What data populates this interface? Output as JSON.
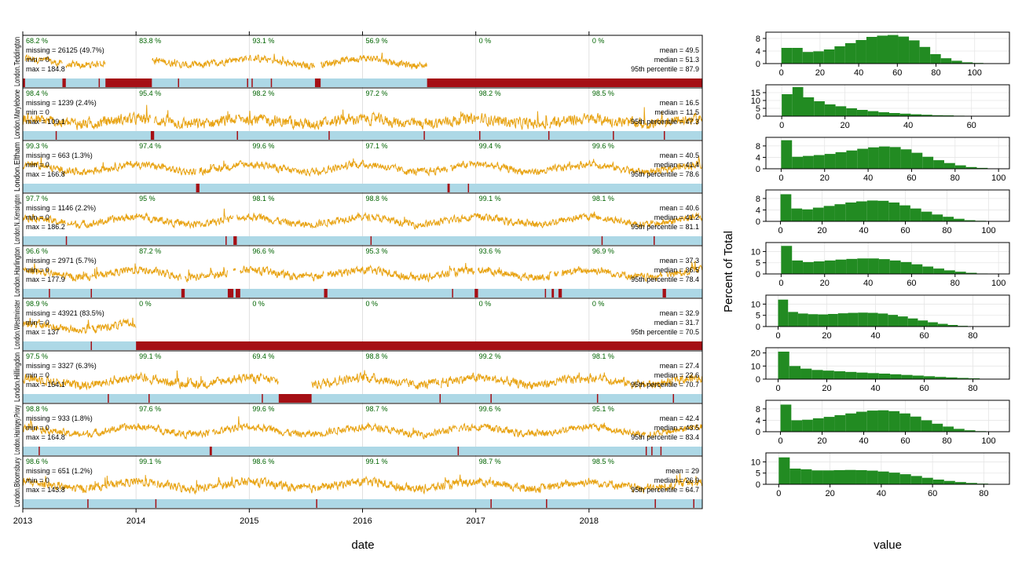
{
  "chart_data": [
    {
      "type": "line",
      "title": "",
      "xlabel": "date",
      "ylabel": "",
      "xlim": [
        2013,
        2019
      ],
      "x_ticks": [
        "2013",
        "2014",
        "2015",
        "2016",
        "2017",
        "2018"
      ],
      "colors": {
        "line": "#e8a313",
        "present": "#add8e6",
        "missing": "#a50f15",
        "pct_text": "#006400",
        "grid": "#d9d9d9"
      },
      "panels": [
        {
          "site": "London.Teddington",
          "missing": "missing = 26125 (49.7%)",
          "min": "min = 0",
          "max": "max = 184.8",
          "mean": "mean = 49.5",
          "median": "median = 51.3",
          "p95": "95th percentile = 87.9",
          "year_pct": [
            "68.2 %",
            "83.8 %",
            "93.1 %",
            "56.9 %",
            "0 %",
            "0 %"
          ],
          "missing_spans": [
            [
              2013.0,
              2013.02
            ],
            [
              2013.35,
              2013.38
            ],
            [
              2013.67,
              2013.68
            ],
            [
              2013.73,
              2014.14
            ],
            [
              2014.37,
              2014.38
            ],
            [
              2014.98,
              2014.99
            ],
            [
              2015.02,
              2015.03
            ],
            [
              2015.19,
              2015.2
            ],
            [
              2015.58,
              2015.63
            ],
            [
              2016.57,
              2019.0
            ]
          ],
          "level": 48,
          "amp": 22,
          "noise": 16
        },
        {
          "site": "London.Marylebone",
          "missing": "missing = 1239 (2.4%)",
          "min": "min = 0",
          "max": "max = 109.1",
          "mean": "mean = 16.5",
          "median": "median = 11.5",
          "p95": "95th percentile = 47.3",
          "year_pct": [
            "98.4 %",
            "95.4 %",
            "98.2 %",
            "97.2 %",
            "98.2 %",
            "98.5 %"
          ],
          "missing_spans": [
            [
              2013.29,
              2013.3
            ],
            [
              2014.13,
              2014.16
            ],
            [
              2014.89,
              2014.9
            ],
            [
              2015.7,
              2015.71
            ],
            [
              2016.54,
              2016.55
            ],
            [
              2017.03,
              2017.04
            ],
            [
              2017.64,
              2017.65
            ],
            [
              2018.21,
              2018.22
            ],
            [
              2018.66,
              2018.67
            ]
          ],
          "level": 15,
          "amp": 8,
          "noise": 14
        },
        {
          "site": "London.Eltham",
          "missing": "missing = 663 (1.3%)",
          "min": "min = 0",
          "max": "max = 166.8",
          "mean": "mean = 40.5",
          "median": "median = 41.4",
          "p95": "95th percentile = 78.6",
          "year_pct": [
            "99.3 %",
            "97.4 %",
            "99.6 %",
            "97.1 %",
            "99.4 %",
            "99.6 %"
          ],
          "missing_spans": [
            [
              2014.53,
              2014.56
            ],
            [
              2016.75,
              2016.77
            ],
            [
              2016.93,
              2016.94
            ]
          ],
          "level": 40,
          "amp": 20,
          "noise": 15
        },
        {
          "site": "London.N..Kensington",
          "missing": "missing = 1146 (2.2%)",
          "min": "min = 0",
          "max": "max = 186.2",
          "mean": "mean = 40.6",
          "median": "median = 41.2",
          "p95": "95th percentile = 81.1",
          "year_pct": [
            "97.7 %",
            "95 %",
            "98.1 %",
            "98.8 %",
            "99.1 %",
            "98.1 %"
          ],
          "missing_spans": [
            [
              2013.38,
              2013.39
            ],
            [
              2014.79,
              2014.8
            ],
            [
              2014.86,
              2014.89
            ],
            [
              2016.07,
              2016.08
            ],
            [
              2018.11,
              2018.12
            ],
            [
              2018.57,
              2018.58
            ]
          ],
          "level": 40,
          "amp": 20,
          "noise": 15
        },
        {
          "site": "London.Harlington",
          "missing": "missing = 2971 (5.7%)",
          "min": "min = 0",
          "max": "max = 177.9",
          "mean": "mean = 37.3",
          "median": "median = 36.5",
          "p95": "95th percentile = 78.4",
          "year_pct": [
            "96.6 %",
            "87.2 %",
            "96.6 %",
            "95.3 %",
            "93.6 %",
            "96.9 %"
          ],
          "missing_spans": [
            [
              2013.23,
              2013.24
            ],
            [
              2013.6,
              2013.61
            ],
            [
              2014.4,
              2014.43
            ],
            [
              2014.81,
              2014.86
            ],
            [
              2014.88,
              2014.92
            ],
            [
              2015.66,
              2015.69
            ],
            [
              2016.79,
              2016.8
            ],
            [
              2016.99,
              2017.02
            ],
            [
              2017.61,
              2017.62
            ],
            [
              2017.67,
              2017.69
            ],
            [
              2017.73,
              2017.76
            ],
            [
              2018.65,
              2018.68
            ]
          ],
          "level": 37,
          "amp": 18,
          "noise": 15
        },
        {
          "site": "London.Westminster",
          "missing": "missing = 43921 (83.5%)",
          "min": "min = 0",
          "max": "max = 137",
          "mean": "mean = 32.9",
          "median": "median = 31.7",
          "p95": "95th percentile = 70.5",
          "year_pct": [
            "98.9 %",
            "0 %",
            "0 %",
            "0 %",
            "0 %",
            "0 %"
          ],
          "missing_spans": [
            [
              2013.6,
              2013.61
            ],
            [
              2014.0,
              2019.0
            ]
          ],
          "level": 32,
          "amp": 14,
          "noise": 14
        },
        {
          "site": "London.Hillingdon",
          "missing": "missing = 3327 (6.3%)",
          "min": "min = 0",
          "max": "max = 154.1",
          "mean": "mean = 27.4",
          "median": "median = 22.6",
          "p95": "95th percentile = 70.7",
          "year_pct": [
            "97.5 %",
            "99.1 %",
            "69.4 %",
            "98.8 %",
            "99.2 %",
            "98.1 %"
          ],
          "missing_spans": [
            [
              2013.75,
              2013.76
            ],
            [
              2014.11,
              2014.12
            ],
            [
              2015.11,
              2015.12
            ],
            [
              2015.26,
              2015.55
            ],
            [
              2016.68,
              2016.69
            ],
            [
              2017.13,
              2017.14
            ],
            [
              2018.07,
              2018.08
            ],
            [
              2018.74,
              2018.75
            ]
          ],
          "level": 27,
          "amp": 15,
          "noise": 15
        },
        {
          "site": "London.Haringey.Priory",
          "missing": "missing = 933 (1.8%)",
          "min": "min = 0",
          "max": "max = 164.8",
          "mean": "mean = 42.4",
          "median": "median = 43.5",
          "p95": "95th percentile = 83.4",
          "year_pct": [
            "98.8 %",
            "97.6 %",
            "99.6 %",
            "98.7 %",
            "99.6 %",
            "95.1 %"
          ],
          "missing_spans": [
            [
              2013.14,
              2013.15
            ],
            [
              2014.65,
              2014.67
            ],
            [
              2016.84,
              2016.85
            ],
            [
              2018.5,
              2018.51
            ],
            [
              2018.55,
              2018.56
            ],
            [
              2018.63,
              2018.64
            ]
          ],
          "level": 42,
          "amp": 20,
          "noise": 15
        },
        {
          "site": "London.Bloomsbury",
          "missing": "missing = 651 (1.2%)",
          "min": "min = 0",
          "max": "max = 143.8",
          "mean": "mean = 29",
          "median": "median = 26.9",
          "p95": "95th percentile = 64.7",
          "year_pct": [
            "98.6 %",
            "99.1 %",
            "98.6 %",
            "99.1 %",
            "98.7 %",
            "98.5 %"
          ],
          "missing_spans": [
            [
              2013.57,
              2013.58
            ],
            [
              2014.17,
              2014.18
            ],
            [
              2015.59,
              2015.6
            ],
            [
              2017.13,
              2017.14
            ],
            [
              2017.62,
              2017.63
            ],
            [
              2018.58,
              2018.59
            ],
            [
              2018.92,
              2018.93
            ]
          ],
          "level": 29,
          "amp": 14,
          "noise": 14
        }
      ]
    },
    {
      "type": "bar",
      "title": "",
      "xlabel": "value",
      "ylabel": "Percent of Total",
      "panels": [
        {
          "xlim": [
            -8,
            118
          ],
          "xticks": [
            0,
            20,
            40,
            60,
            80,
            100
          ],
          "ylim": [
            0,
            10
          ],
          "yticks": [
            0,
            4,
            8
          ],
          "bin": 5.5,
          "values": [
            5.0,
            5.0,
            3.7,
            3.9,
            4.5,
            5.5,
            6.5,
            7.5,
            8.5,
            8.9,
            9.1,
            8.6,
            7.4,
            5.3,
            3.0,
            1.7,
            0.9,
            0.4,
            0.2,
            0.1
          ]
        },
        {
          "xlim": [
            -5,
            72
          ],
          "xticks": [
            0,
            20,
            40,
            60
          ],
          "ylim": [
            0,
            20
          ],
          "yticks": [
            0,
            5,
            10,
            15
          ],
          "bin": 3.4,
          "values": [
            14.0,
            18.5,
            12.0,
            9.5,
            7.5,
            6.3,
            5.0,
            4.0,
            3.2,
            2.5,
            2.0,
            1.6,
            1.2,
            0.9,
            0.6,
            0.5,
            0.3,
            0.2,
            0.1,
            0.1
          ]
        },
        {
          "xlim": [
            -7,
            105
          ],
          "xticks": [
            0,
            20,
            40,
            60,
            80,
            100
          ],
          "ylim": [
            0,
            11
          ],
          "yticks": [
            0,
            4,
            8
          ],
          "bin": 5.0,
          "values": [
            10.0,
            4.2,
            4.5,
            4.8,
            5.2,
            5.8,
            6.4,
            7.0,
            7.5,
            7.8,
            7.6,
            6.8,
            5.6,
            4.2,
            3.0,
            2.0,
            1.2,
            0.6,
            0.3,
            0.1
          ]
        },
        {
          "xlim": [
            -7,
            110
          ],
          "xticks": [
            0,
            20,
            40,
            60,
            80,
            100
          ],
          "ylim": [
            0,
            11
          ],
          "yticks": [
            0,
            4,
            8
          ],
          "bin": 5.2,
          "values": [
            9.5,
            4.5,
            4.2,
            4.8,
            5.4,
            6.0,
            6.6,
            7.0,
            7.3,
            7.2,
            6.6,
            5.6,
            4.5,
            3.4,
            2.4,
            1.6,
            0.9,
            0.4,
            0.2,
            0.1
          ]
        },
        {
          "xlim": [
            -7,
            105
          ],
          "xticks": [
            0,
            20,
            40,
            60,
            80,
            100
          ],
          "ylim": [
            0,
            14
          ],
          "yticks": [
            0,
            5,
            10
          ],
          "bin": 5.0,
          "values": [
            12.5,
            6.0,
            5.3,
            5.6,
            6.0,
            6.4,
            6.7,
            6.9,
            6.9,
            6.6,
            6.0,
            5.3,
            4.3,
            3.3,
            2.4,
            1.6,
            1.0,
            0.5,
            0.2,
            0.1
          ]
        },
        {
          "xlim": [
            -5,
            95
          ],
          "xticks": [
            0,
            20,
            40,
            60,
            80
          ],
          "ylim": [
            0,
            14
          ],
          "yticks": [
            0,
            5,
            10
          ],
          "bin": 4.1,
          "values": [
            12.0,
            6.5,
            5.8,
            5.5,
            5.4,
            5.6,
            5.9,
            6.1,
            6.2,
            6.1,
            5.8,
            5.2,
            4.5,
            3.6,
            2.7,
            1.9,
            1.2,
            0.7,
            0.3,
            0.1
          ]
        },
        {
          "xlim": [
            -5,
            95
          ],
          "xticks": [
            0,
            20,
            40,
            60,
            80
          ],
          "ylim": [
            0,
            24
          ],
          "yticks": [
            0,
            10,
            20
          ],
          "bin": 4.6,
          "values": [
            21.0,
            10.0,
            8.0,
            7.0,
            6.5,
            6.0,
            5.5,
            5.0,
            4.6,
            4.2,
            3.7,
            3.2,
            2.7,
            2.2,
            1.7,
            1.3,
            0.9,
            0.6,
            0.3,
            0.1
          ]
        },
        {
          "xlim": [
            -7,
            110
          ],
          "xticks": [
            0,
            20,
            40,
            60,
            80,
            100
          ],
          "ylim": [
            0,
            11
          ],
          "yticks": [
            0,
            4,
            8
          ],
          "bin": 5.2,
          "values": [
            9.5,
            4.0,
            4.2,
            4.7,
            5.2,
            5.8,
            6.4,
            7.0,
            7.4,
            7.5,
            7.2,
            6.4,
            5.3,
            4.0,
            2.8,
            1.8,
            1.0,
            0.5,
            0.2,
            0.1
          ]
        },
        {
          "xlim": [
            -5,
            90
          ],
          "xticks": [
            0,
            20,
            40,
            60,
            80
          ],
          "ylim": [
            0,
            14
          ],
          "yticks": [
            0,
            5,
            10
          ],
          "bin": 4.3,
          "values": [
            12.0,
            7.0,
            6.7,
            6.2,
            6.2,
            6.3,
            6.4,
            6.3,
            6.1,
            5.7,
            5.2,
            4.5,
            3.7,
            2.9,
            2.1,
            1.5,
            1.0,
            0.6,
            0.3,
            0.1
          ]
        }
      ]
    }
  ]
}
